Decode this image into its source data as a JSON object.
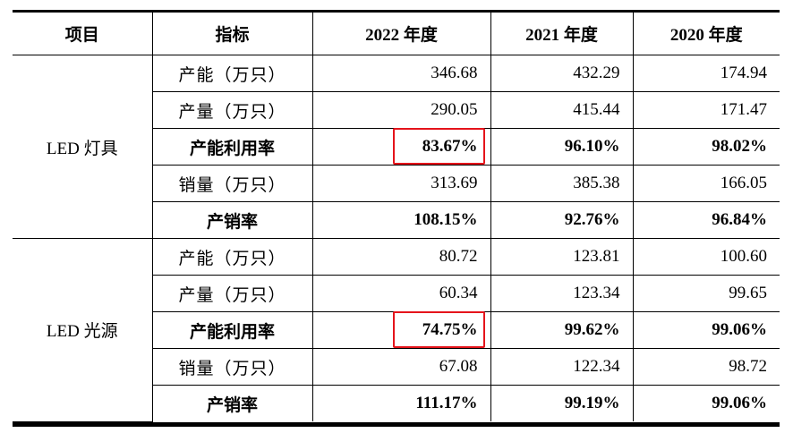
{
  "table": {
    "headers": [
      "项目",
      "指标",
      "2022 年度",
      "2021 年度",
      "2020 年度"
    ],
    "groups": [
      {
        "name": "LED 灯具",
        "rows": [
          {
            "metric": "产能（万只）",
            "values": [
              "346.68",
              "432.29",
              "174.94"
            ],
            "bold": false
          },
          {
            "metric": "产量（万只）",
            "values": [
              "290.05",
              "415.44",
              "171.47"
            ],
            "bold": false
          },
          {
            "metric": "产能利用率",
            "values": [
              "83.67%",
              "96.10%",
              "98.02%"
            ],
            "bold": true
          },
          {
            "metric": "销量（万只）",
            "values": [
              "313.69",
              "385.38",
              "166.05"
            ],
            "bold": false
          },
          {
            "metric": "产销率",
            "values": [
              "108.15%",
              "92.76%",
              "96.84%"
            ],
            "bold": true
          }
        ]
      },
      {
        "name": "LED 光源",
        "rows": [
          {
            "metric": "产能（万只）",
            "values": [
              "80.72",
              "123.81",
              "100.60"
            ],
            "bold": false
          },
          {
            "metric": "产量（万只）",
            "values": [
              "60.34",
              "123.34",
              "99.65"
            ],
            "bold": false
          },
          {
            "metric": "产能利用率",
            "values": [
              "74.75%",
              "99.62%",
              "99.06%"
            ],
            "bold": true
          },
          {
            "metric": "销量（万只）",
            "values": [
              "67.08",
              "122.34",
              "98.72"
            ],
            "bold": false
          },
          {
            "metric": "产销率",
            "values": [
              "111.17%",
              "99.19%",
              "99.06%"
            ],
            "bold": true
          }
        ]
      }
    ],
    "highlight_color": "#e5141b"
  }
}
